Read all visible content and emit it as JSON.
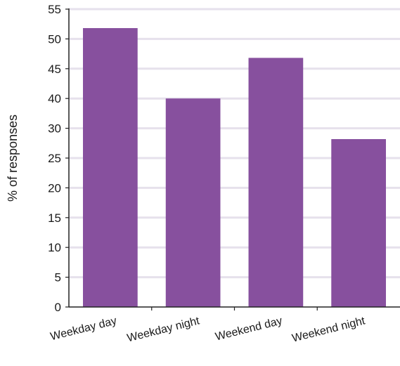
{
  "colors": {
    "bar": "#87509e",
    "gridline": "#e6e1ec",
    "axis": "#222222",
    "text": "#1a1a1a",
    "background": "#ffffff"
  },
  "chart_data": {
    "type": "bar",
    "title": "",
    "xlabel": "",
    "ylabel": "% of responses",
    "categories": [
      "Weekday day",
      "Weekday night",
      "Weekend day",
      "Weekend night"
    ],
    "values": [
      51.5,
      38.5,
      46,
      31
    ],
    "y_tick_labels": [
      "0",
      "5",
      "10",
      "15",
      "20",
      "25",
      "30",
      "40",
      "45",
      "50",
      "55"
    ],
    "ylim": [
      0,
      55
    ],
    "grid": true,
    "legend": "none"
  }
}
